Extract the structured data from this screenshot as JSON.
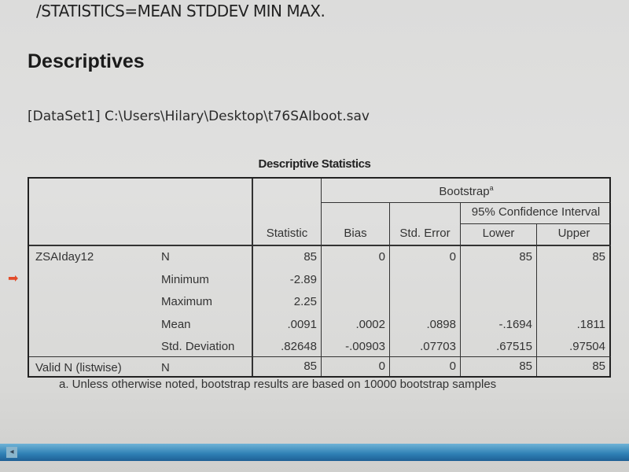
{
  "syntax_line": "/STATISTICS=MEAN STDDEV MIN MAX.",
  "heading": "Descriptives",
  "dataset_line": "[DataSet1] C:\\Users\\Hilary\\Desktop\\t76SAIboot.sav",
  "table": {
    "title": "Descriptive Statistics",
    "bootstrap_header": "Bootstrap",
    "bootstrap_sup": "a",
    "ci_header": "95% Confidence Interval",
    "columns": [
      "Statistic",
      "Bias",
      "Std. Error",
      "Lower",
      "Upper"
    ],
    "variable": "ZSAIday12",
    "rows": [
      {
        "stat": "N",
        "values": [
          "85",
          "0",
          "0",
          "85",
          "85"
        ]
      },
      {
        "stat": "Minimum",
        "values": [
          "-2.89",
          "",
          "",
          "",
          ""
        ]
      },
      {
        "stat": "Maximum",
        "values": [
          "2.25",
          "",
          "",
          "",
          ""
        ]
      },
      {
        "stat": "Mean",
        "values": [
          ".0091",
          ".0002",
          ".0898",
          "-.1694",
          ".1811"
        ]
      },
      {
        "stat": "Std. Deviation",
        "values": [
          ".82648",
          "-.00903",
          ".07703",
          ".67515",
          ".97504"
        ]
      }
    ],
    "valid_row": {
      "label": "Valid N (listwise)",
      "stat": "N",
      "values": [
        "85",
        "0",
        "0",
        "85",
        "85"
      ]
    },
    "footnote": "a. Unless otherwise noted, bootstrap results are based on 10000 bootstrap samples"
  },
  "arrow_icon": "➡",
  "accent_color": "#e24b2a"
}
